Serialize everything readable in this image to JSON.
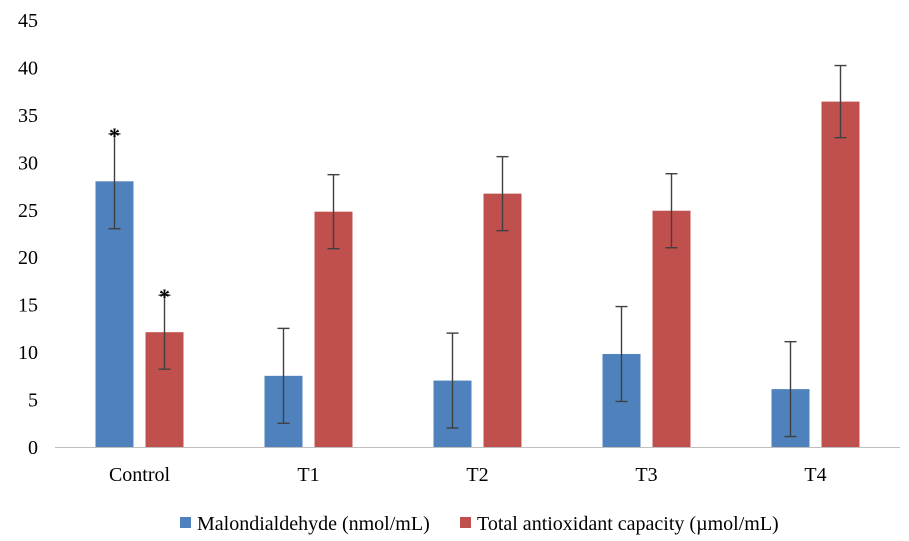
{
  "chart_data": {
    "type": "bar",
    "categories": [
      "Control",
      "T1",
      "T2",
      "T3",
      "T4"
    ],
    "series": [
      {
        "name": "Malondialdehyde (nmol/mL)",
        "color": "#4f81bd",
        "values": [
          28,
          7.5,
          7,
          9.8,
          6.1
        ],
        "errors": [
          5,
          5,
          5,
          5,
          5
        ],
        "markers": [
          "*",
          "",
          "",
          "",
          ""
        ]
      },
      {
        "name": "Total antioxidant capacity (µmol/mL)",
        "color": "#c0504d",
        "values": [
          12.1,
          24.8,
          26.7,
          24.9,
          36.4
        ],
        "errors": [
          3.9,
          3.9,
          3.9,
          3.9,
          3.8
        ],
        "markers": [
          "*",
          "",
          "",
          "",
          ""
        ]
      }
    ],
    "ylim": [
      0,
      45
    ],
    "yticks": [
      0,
      5,
      10,
      15,
      20,
      25,
      30,
      35,
      40,
      45
    ],
    "grid": false,
    "legend_position": "bottom",
    "title": "",
    "xlabel": "",
    "ylabel": "",
    "error_bar_color": "#404040",
    "axis_color": "#bfbfbf"
  }
}
